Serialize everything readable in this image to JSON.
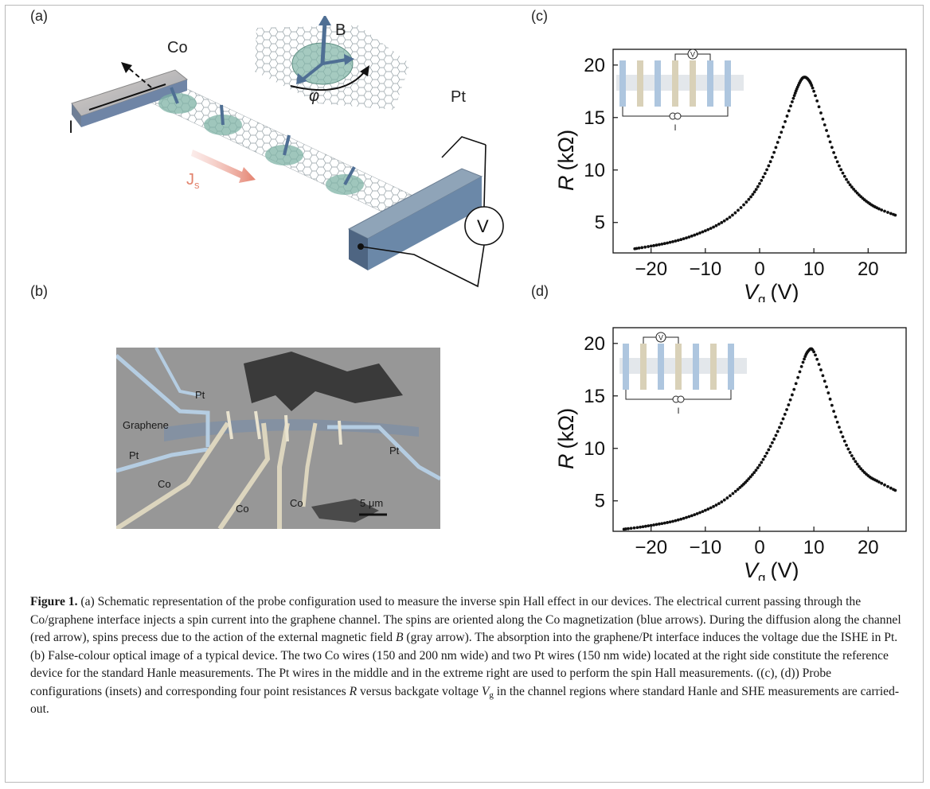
{
  "panels": {
    "a": {
      "label": "(a)",
      "co_label": "Co",
      "b_label": "B",
      "phi_label": "φ",
      "i_label": "I",
      "pt_label": "Pt",
      "js_label": "J",
      "js_sub": "s",
      "v_label": "V"
    },
    "b": {
      "label": "(b)",
      "labels": {
        "pt_top": "Pt",
        "graphene": "Graphene",
        "pt_left": "Pt",
        "co_left": "Co",
        "co_mid": "Co",
        "co_right": "Co",
        "pt_right": "Pt",
        "scale": "5 μm"
      }
    },
    "c": {
      "label": "(c)",
      "inset_v": "V",
      "inset_i": "I",
      "ylabel_italic": "R",
      "ylabel_unit": "(kΩ)",
      "xlabel_italic": "V",
      "xlabel_sub": "g",
      "xlabel_unit": "(V)"
    },
    "d": {
      "label": "(d)",
      "inset_v": "V",
      "inset_i": "I",
      "ylabel_italic": "R",
      "ylabel_unit": "(kΩ)",
      "xlabel_italic": "V",
      "xlabel_sub": "g",
      "xlabel_unit": "(V)"
    }
  },
  "caption": {
    "head": "Figure 1.",
    "part1": " (a) Schematic representation of the probe configuration used to measure the inverse spin Hall effect in our devices. The electrical current passing through the Co/graphene interface injects a spin current into the graphene channel. The spins are oriented along the Co magnetization (blue arrows). During the diffusion along the channel (red arrow), spins precess due to the action of the external magnetic field ",
    "b_sym": "B",
    "part2": " (gray arrow). The absorption into the graphene/Pt interface induces the voltage due the ISHE in Pt. (b) False-colour optical image of a typical device. The two Co wires (150 and 200 nm wide) and two Pt wires (150 nm wide) located at the right side constitute the reference device for the standard Hanle measurements. The Pt wires in the middle and in the extreme right are used to perform the spin Hall measurements. ((c), (d)) Probe configurations (insets) and corresponding four point resistances ",
    "r_sym": "R",
    "part3": " versus backgate voltage ",
    "v_sym": "V",
    "v_sub": "g",
    "part4": " in the channel regions where standard Hanle and SHE measurements are carried-out."
  },
  "chart_data": [
    {
      "type": "scatter",
      "panel": "(c)",
      "xlabel": "Vg (V)",
      "ylabel": "R (kΩ)",
      "xlim": [
        -27,
        27
      ],
      "ylim": [
        2.1,
        21.5
      ],
      "xticks": [
        -20,
        -10,
        0,
        10,
        20
      ],
      "yticks": [
        5,
        10,
        15,
        20
      ],
      "x": [
        -23,
        -20,
        -17,
        -14,
        -11,
        -8,
        -5,
        -2,
        0,
        2,
        4,
        6,
        7,
        8,
        9,
        10,
        12,
        14,
        16,
        18,
        20,
        22,
        25
      ],
      "y": [
        2.5,
        2.75,
        3.05,
        3.45,
        4.0,
        4.7,
        5.7,
        7.2,
        8.7,
        10.8,
        13.6,
        16.5,
        17.9,
        18.8,
        18.6,
        17.5,
        14.3,
        11.2,
        9.1,
        7.8,
        6.9,
        6.3,
        5.7
      ]
    },
    {
      "type": "scatter",
      "panel": "(d)",
      "xlabel": "Vg (V)",
      "ylabel": "R (kΩ)",
      "xlim": [
        -27,
        27
      ],
      "ylim": [
        2.1,
        21.5
      ],
      "xticks": [
        -20,
        -10,
        0,
        10,
        20
      ],
      "yticks": [
        5,
        10,
        15,
        20
      ],
      "x": [
        -25,
        -22,
        -19,
        -16,
        -13,
        -10,
        -7,
        -4,
        -2,
        0,
        2,
        4,
        6,
        8,
        9,
        10,
        12,
        14,
        16,
        18,
        20,
        22,
        25
      ],
      "y": [
        2.3,
        2.5,
        2.75,
        3.05,
        3.5,
        4.1,
        4.9,
        6.1,
        7.1,
        8.4,
        10.2,
        12.4,
        15.1,
        18.2,
        19.3,
        19.2,
        16.4,
        13.0,
        10.3,
        8.5,
        7.4,
        6.8,
        6.0
      ]
    }
  ]
}
